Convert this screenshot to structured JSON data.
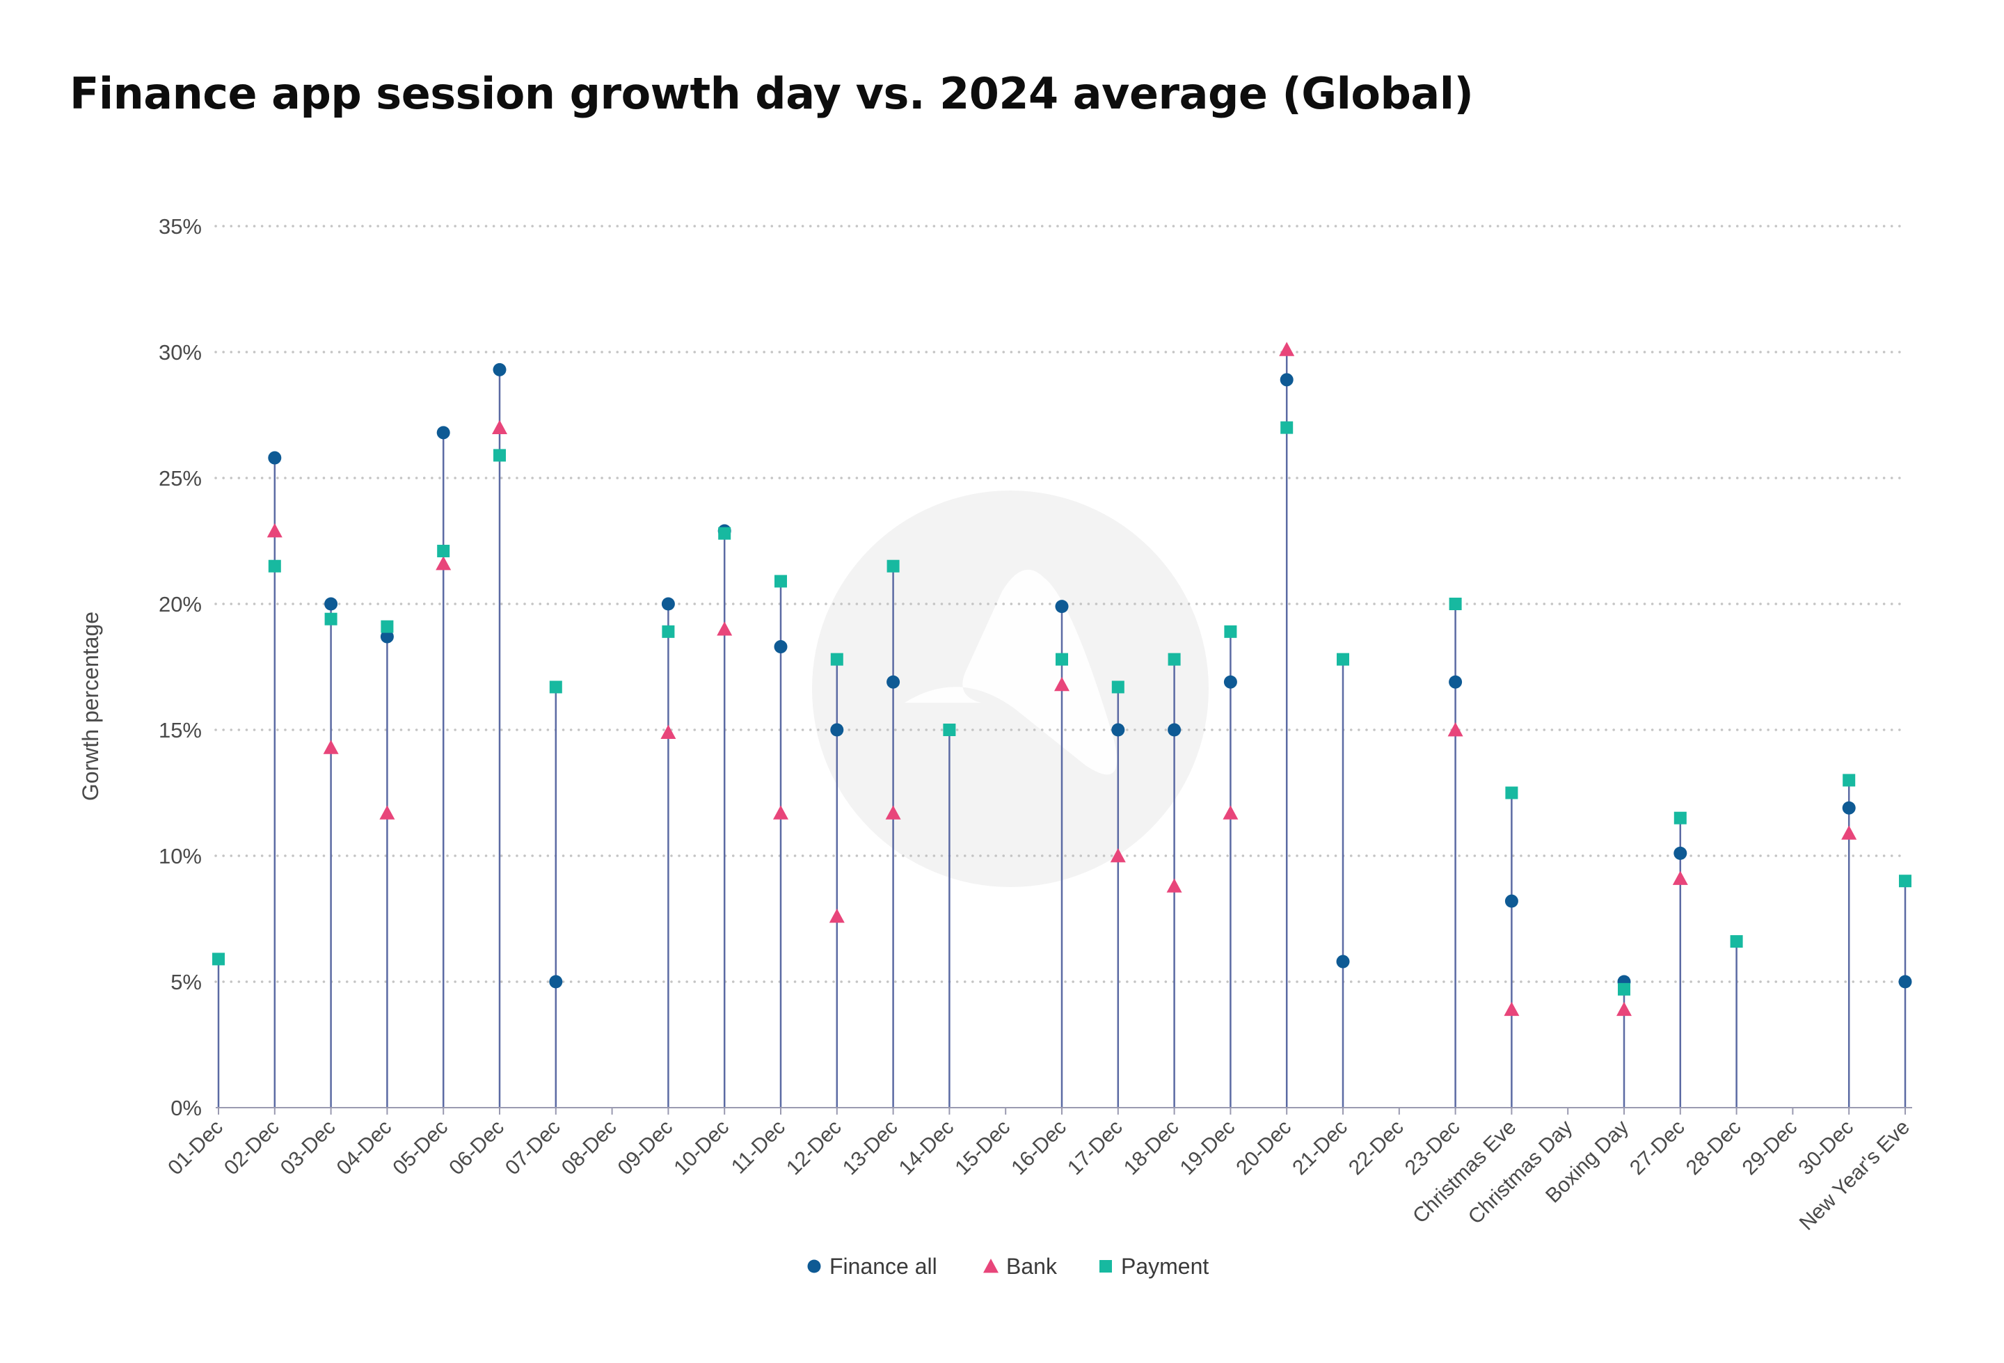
{
  "chart_data": {
    "type": "scatter",
    "title": "Finance app session growth day vs. 2024 average (Global)",
    "xlabel": "",
    "ylabel": "Gorwth percentage",
    "ylim": [
      0,
      35
    ],
    "yticks": [
      "0%",
      "5%",
      "10%",
      "15%",
      "20%",
      "25%",
      "30%",
      "35%"
    ],
    "grid": "horizontal dotted",
    "legend_position": "bottom",
    "categories": [
      "01-Dec",
      "02-Dec",
      "03-Dec",
      "04-Dec",
      "05-Dec",
      "06-Dec",
      "07-Dec",
      "08-Dec",
      "09-Dec",
      "10-Dec",
      "11-Dec",
      "12-Dec",
      "13-Dec",
      "14-Dec",
      "15-Dec",
      "16-Dec",
      "17-Dec",
      "18-Dec",
      "19-Dec",
      "20-Dec",
      "21-Dec",
      "22-Dec",
      "23-Dec",
      "Christmas Eve",
      "Christmas Day",
      "Boxing Day",
      "27-Dec",
      "28-Dec",
      "29-Dec",
      "30-Dec",
      "New Year's Eve"
    ],
    "series": [
      {
        "name": "Finance all",
        "marker": "circle",
        "color": "#0e5a94",
        "values": [
          null,
          25.8,
          20.0,
          18.7,
          26.8,
          29.3,
          5.0,
          null,
          20.0,
          22.9,
          18.3,
          15.0,
          16.9,
          null,
          null,
          19.9,
          15.0,
          15.0,
          16.9,
          28.9,
          5.8,
          null,
          16.9,
          8.2,
          null,
          5.0,
          10.1,
          null,
          null,
          11.9,
          5.0
        ]
      },
      {
        "name": "Bank",
        "marker": "triangle",
        "color": "#e8457a",
        "values": [
          null,
          22.9,
          14.3,
          11.7,
          21.6,
          27.0,
          null,
          null,
          14.9,
          19.0,
          11.7,
          7.6,
          11.7,
          null,
          null,
          16.8,
          10.0,
          8.8,
          11.7,
          30.1,
          null,
          null,
          15.0,
          3.9,
          null,
          3.9,
          9.1,
          null,
          null,
          10.9,
          null
        ]
      },
      {
        "name": "Payment",
        "marker": "square",
        "color": "#17b9a0",
        "values": [
          5.9,
          21.5,
          19.4,
          19.1,
          22.1,
          25.9,
          16.7,
          null,
          18.9,
          22.8,
          20.9,
          17.8,
          21.5,
          15.0,
          null,
          17.8,
          16.7,
          17.8,
          18.9,
          27.0,
          17.8,
          null,
          20.0,
          12.5,
          null,
          4.7,
          11.5,
          6.6,
          null,
          13.0,
          9.0
        ]
      }
    ]
  },
  "colors": {
    "stem": "#5b6aa3",
    "grid": "#c4c4c4",
    "axis": "#9a9ab0",
    "text": "#4a4a4a",
    "watermark": "#f3f3f3"
  }
}
